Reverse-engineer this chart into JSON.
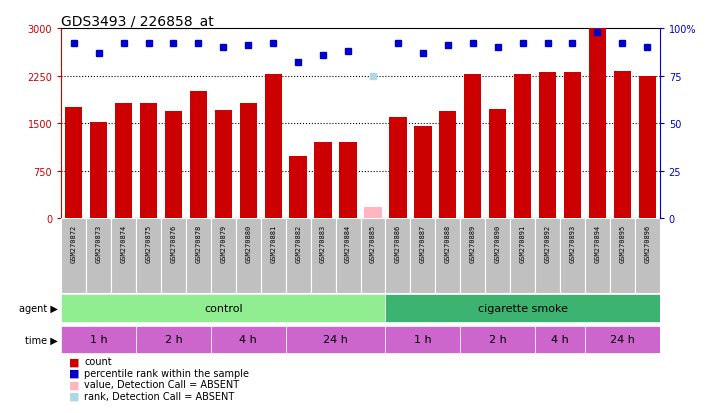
{
  "title": "GDS3493 / 226858_at",
  "samples": [
    "GSM270872",
    "GSM270873",
    "GSM270874",
    "GSM270875",
    "GSM270876",
    "GSM270878",
    "GSM270879",
    "GSM270880",
    "GSM270881",
    "GSM270882",
    "GSM270883",
    "GSM270884",
    "GSM270885",
    "GSM270886",
    "GSM270887",
    "GSM270888",
    "GSM270889",
    "GSM270890",
    "GSM270891",
    "GSM270892",
    "GSM270893",
    "GSM270894",
    "GSM270895",
    "GSM270896"
  ],
  "counts": [
    1750,
    1520,
    1820,
    1820,
    1700,
    2000,
    1710,
    1820,
    2270,
    980,
    1200,
    1200,
    180,
    1600,
    1450,
    1700,
    2280,
    1730,
    2270,
    2310,
    2310,
    3000,
    2330,
    2250
  ],
  "ranks_pct": [
    92,
    87,
    92,
    92,
    92,
    92,
    90,
    91,
    92,
    82,
    86,
    88,
    75,
    92,
    87,
    91,
    92,
    90,
    92,
    92,
    92,
    98,
    92,
    90
  ],
  "absent_mask": [
    false,
    false,
    false,
    false,
    false,
    false,
    false,
    false,
    false,
    false,
    false,
    false,
    true,
    false,
    false,
    false,
    false,
    false,
    false,
    false,
    false,
    false,
    false,
    false
  ],
  "absent_rank_pct": 75,
  "agent_groups": [
    {
      "label": "control",
      "start": 0,
      "end": 13,
      "color": "#90EE90"
    },
    {
      "label": "cigarette smoke",
      "start": 13,
      "end": 24,
      "color": "#3CB371"
    }
  ],
  "time_groups": [
    {
      "label": "1 h",
      "start": 0,
      "end": 3
    },
    {
      "label": "2 h",
      "start": 3,
      "end": 6
    },
    {
      "label": "4 h",
      "start": 6,
      "end": 9
    },
    {
      "label": "24 h",
      "start": 9,
      "end": 13
    },
    {
      "label": "1 h",
      "start": 13,
      "end": 16
    },
    {
      "label": "2 h",
      "start": 16,
      "end": 19
    },
    {
      "label": "4 h",
      "start": 19,
      "end": 21
    },
    {
      "label": "24 h",
      "start": 21,
      "end": 24
    }
  ],
  "bar_color": "#CC0000",
  "absent_bar_color": "#FFB6C1",
  "rank_color": "#0000CC",
  "absent_rank_color": "#ADD8E6",
  "time_color": "#CC66CC",
  "ylim_left": [
    0,
    3000
  ],
  "ylim_right": [
    0,
    100
  ],
  "yticks_left": [
    0,
    750,
    1500,
    2250,
    3000
  ],
  "yticks_right": [
    0,
    25,
    50,
    75,
    100
  ],
  "background_color": "#ffffff",
  "title_fontsize": 10,
  "tick_label_bg": "#C0C0C0"
}
